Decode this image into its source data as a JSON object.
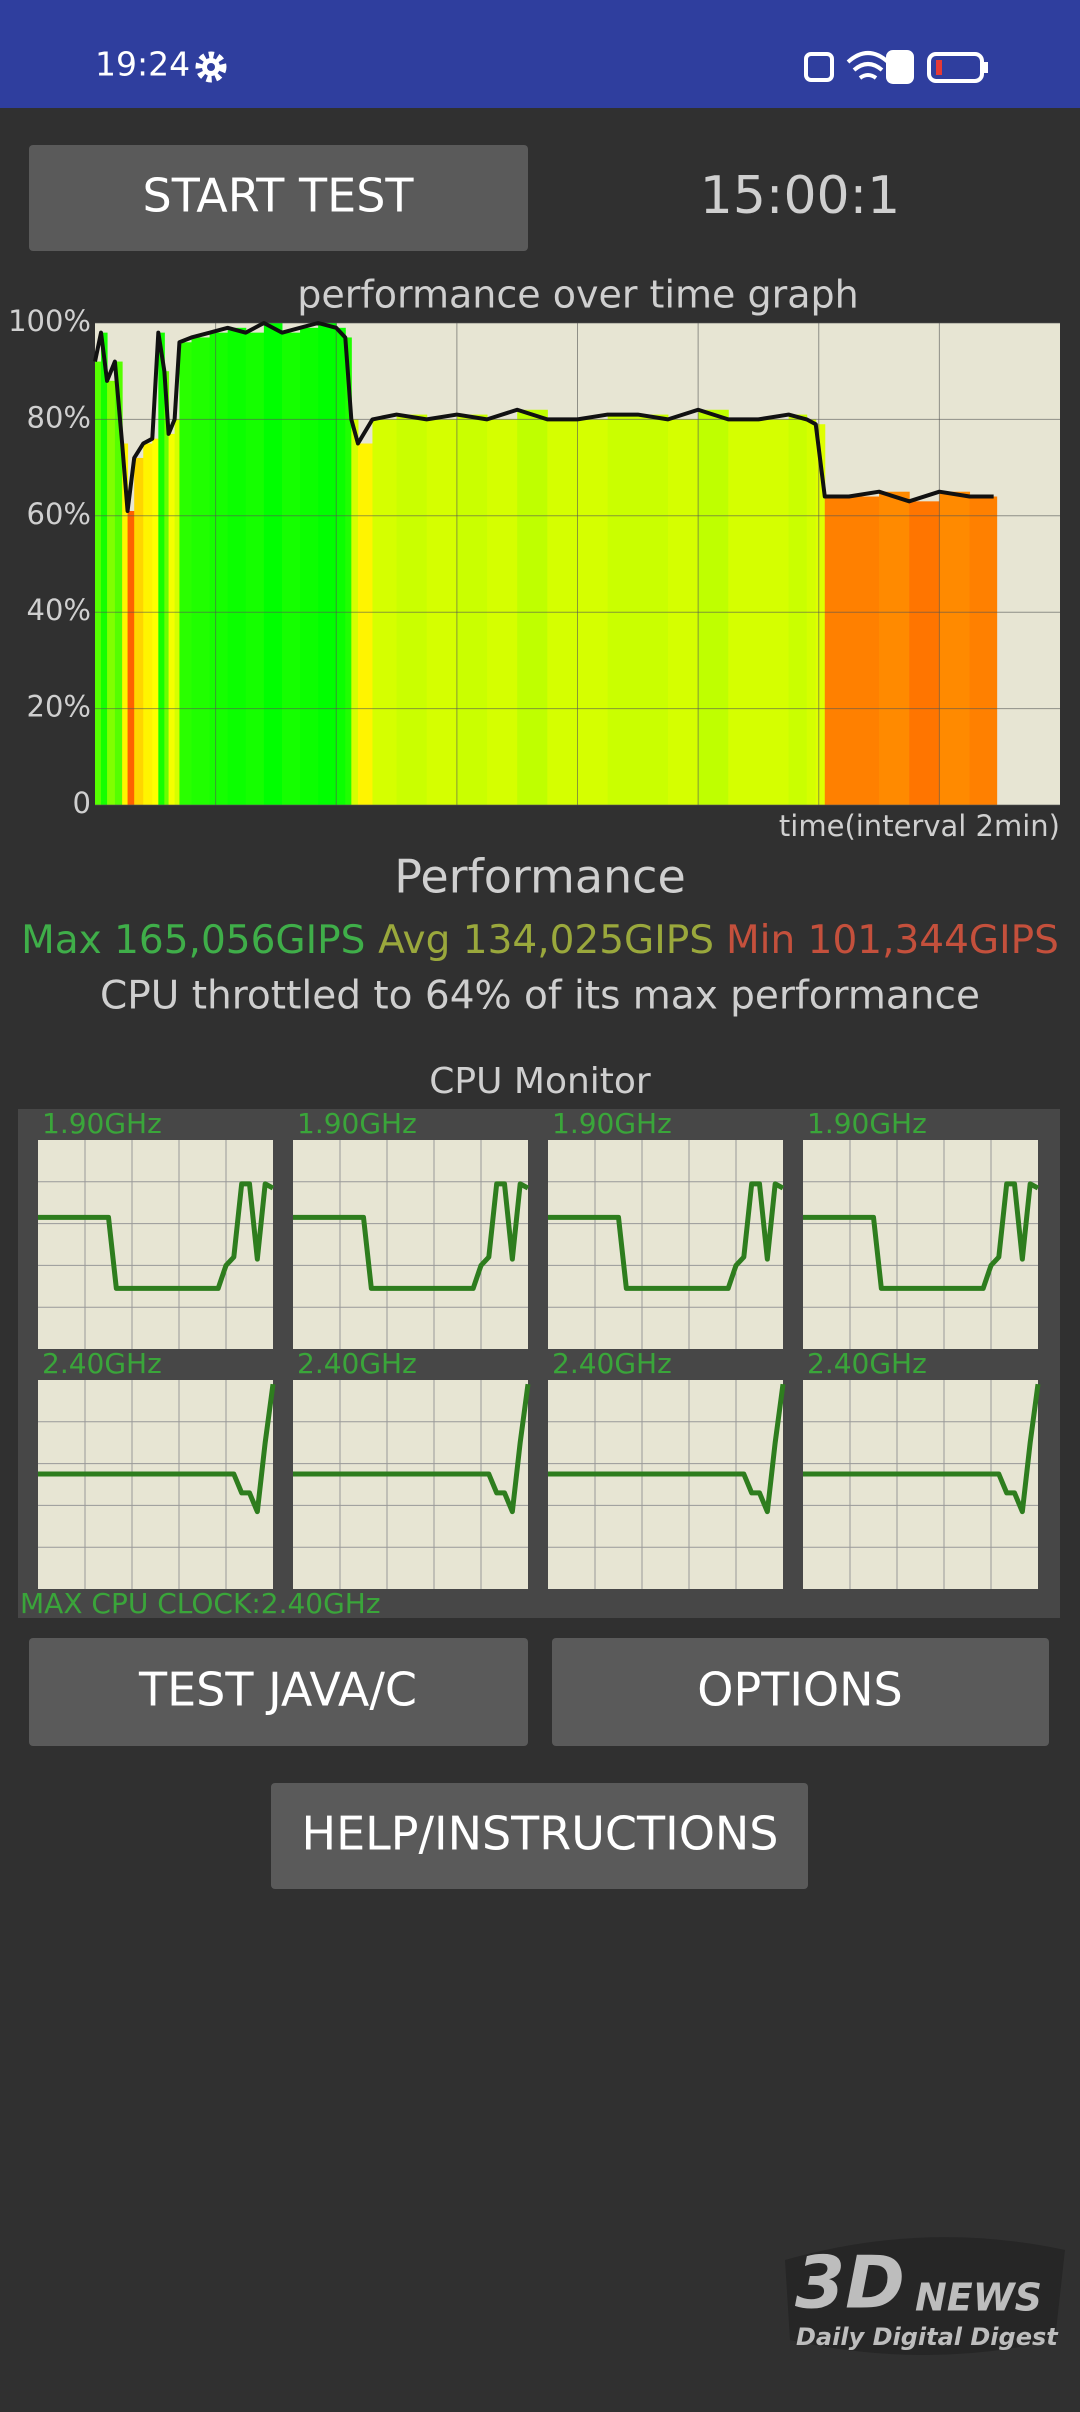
{
  "status_bar": {
    "time": "19:24"
  },
  "timer": "15:00:1",
  "buttons": {
    "start": "START TEST",
    "java": "TEST JAVA/C",
    "options": "OPTIONS",
    "help": "HELP/INSTRUCTIONS"
  },
  "chart_data": {
    "type": "line",
    "title": "performance over time graph",
    "x_label": "time(interval 2min)",
    "xlim": [
      0,
      16
    ],
    "ylim": [
      0,
      100
    ],
    "yticks": [
      0,
      {
        "value": 20,
        "label": "20%"
      },
      {
        "value": 40,
        "label": "40%"
      },
      {
        "value": 60,
        "label": "60%"
      },
      {
        "value": 80,
        "label": "80%"
      },
      {
        "value": 100,
        "label": "100%"
      }
    ],
    "grid": true,
    "color": "#111111",
    "x": [
      0,
      0.1,
      0.2,
      0.33,
      0.45,
      0.54,
      0.65,
      0.8,
      0.95,
      1.05,
      1.15,
      1.22,
      1.32,
      1.4,
      1.6,
      1.9,
      2.2,
      2.5,
      2.8,
      3.1,
      3.4,
      3.7,
      4.0,
      4.15,
      4.25,
      4.36,
      4.6,
      5.0,
      5.5,
      6.0,
      6.5,
      7.0,
      7.5,
      8.0,
      8.5,
      9.0,
      9.5,
      10.0,
      10.5,
      11.0,
      11.5,
      11.8,
      11.95,
      12.1,
      12.5,
      13.0,
      13.5,
      14.0,
      14.5,
      14.9
    ],
    "values": [
      92,
      98,
      88,
      92,
      75,
      61,
      72,
      75,
      76,
      98,
      90,
      77,
      80,
      96,
      97,
      98,
      99,
      98,
      100,
      98,
      99,
      100,
      99,
      97,
      80,
      75,
      80,
      81,
      80,
      81,
      80,
      82,
      80,
      80,
      81,
      81,
      80,
      82,
      80,
      80,
      81,
      80,
      79,
      64,
      64,
      65,
      63,
      65,
      64,
      64
    ]
  },
  "performance": {
    "title": "Performance",
    "max": "Max 165,056GIPS",
    "avg": "Avg 134,025GIPS",
    "min": "Min 101,344GIPS",
    "throttle": "CPU throttled to 64% of its max performance"
  },
  "cpu_monitor": {
    "title": "CPU Monitor",
    "ylim": [
      0,
      100
    ],
    "max_clock": "MAX CPU CLOCK:2.40GHz",
    "cores": [
      {
        "freq": "1.90GHz",
        "values": [
          63,
          63,
          63,
          63,
          63,
          63,
          63,
          63,
          63,
          63,
          29,
          29,
          29,
          29,
          29,
          29,
          29,
          29,
          29,
          29,
          29,
          29,
          29,
          29,
          40,
          44,
          79,
          79,
          43,
          79,
          77
        ]
      },
      {
        "freq": "1.90GHz",
        "values": [
          63,
          63,
          63,
          63,
          63,
          63,
          63,
          63,
          63,
          63,
          29,
          29,
          29,
          29,
          29,
          29,
          29,
          29,
          29,
          29,
          29,
          29,
          29,
          29,
          40,
          44,
          79,
          79,
          43,
          79,
          77
        ]
      },
      {
        "freq": "1.90GHz",
        "values": [
          63,
          63,
          63,
          63,
          63,
          63,
          63,
          63,
          63,
          63,
          29,
          29,
          29,
          29,
          29,
          29,
          29,
          29,
          29,
          29,
          29,
          29,
          29,
          29,
          40,
          44,
          79,
          79,
          43,
          79,
          77
        ]
      },
      {
        "freq": "1.90GHz",
        "values": [
          63,
          63,
          63,
          63,
          63,
          63,
          63,
          63,
          63,
          63,
          29,
          29,
          29,
          29,
          29,
          29,
          29,
          29,
          29,
          29,
          29,
          29,
          29,
          29,
          40,
          44,
          79,
          79,
          43,
          79,
          77
        ]
      },
      {
        "freq": "2.40GHz",
        "values": [
          55,
          55,
          55,
          55,
          55,
          55,
          55,
          55,
          55,
          55,
          55,
          55,
          55,
          55,
          55,
          55,
          55,
          55,
          55,
          55,
          55,
          55,
          55,
          55,
          55,
          55,
          46,
          46,
          37,
          70,
          98
        ]
      },
      {
        "freq": "2.40GHz",
        "values": [
          55,
          55,
          55,
          55,
          55,
          55,
          55,
          55,
          55,
          55,
          55,
          55,
          55,
          55,
          55,
          55,
          55,
          55,
          55,
          55,
          55,
          55,
          55,
          55,
          55,
          55,
          46,
          46,
          37,
          70,
          98
        ]
      },
      {
        "freq": "2.40GHz",
        "values": [
          55,
          55,
          55,
          55,
          55,
          55,
          55,
          55,
          55,
          55,
          55,
          55,
          55,
          55,
          55,
          55,
          55,
          55,
          55,
          55,
          55,
          55,
          55,
          55,
          55,
          55,
          46,
          46,
          37,
          70,
          98
        ]
      },
      {
        "freq": "2.40GHz",
        "values": [
          55,
          55,
          55,
          55,
          55,
          55,
          55,
          55,
          55,
          55,
          55,
          55,
          55,
          55,
          55,
          55,
          55,
          55,
          55,
          55,
          55,
          55,
          55,
          55,
          55,
          55,
          46,
          46,
          37,
          70,
          98
        ]
      }
    ]
  },
  "watermark": {
    "logo": "3D",
    "news": "NEWS",
    "tagline": "Daily Digital Digest"
  }
}
